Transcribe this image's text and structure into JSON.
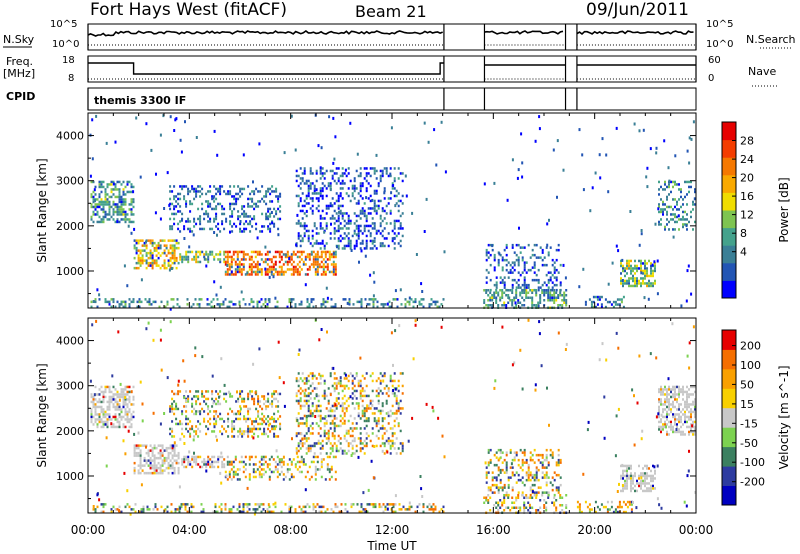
{
  "header": {
    "station": "Fort Hays West (fitACF)",
    "beam": "Beam 21",
    "date": "09/Jun/2011"
  },
  "top_panels": {
    "nsky_label": "N.Sky",
    "nsky_ticks": [
      "10^5",
      "10^0"
    ],
    "nsearch_label": "N.Search",
    "nsearch_ticks": [
      "10^5",
      "10^0"
    ],
    "freq_label_1": "Freq.",
    "freq_label_2": "[MHz]",
    "freq_ticks": [
      "18",
      "8"
    ],
    "nave_label": "Nave",
    "nave_ticks": [
      "60",
      "0"
    ],
    "cpid_label": "CPID",
    "cpid_value": "themis 3300 IF"
  },
  "chart_data": [
    {
      "type": "heatmap",
      "name": "power",
      "ylabel": "Slant Range [km]",
      "xlabel": "",
      "xlim_hours": [
        0,
        24
      ],
      "ylim": [
        180,
        4500
      ],
      "yticks": [
        1000,
        2000,
        3000,
        4000
      ],
      "colorbar": {
        "label": "Power [dB]",
        "ticks": [
          "28",
          "24",
          "20",
          "16",
          "12",
          "8",
          "4"
        ],
        "colors": [
          "#0000ff",
          "#2255b4",
          "#3a7f96",
          "#44a28c",
          "#7ec451",
          "#f0dd00",
          "#f9a900",
          "#f57800",
          "#f43d00",
          "#e60000"
        ]
      },
      "gaps_hours": [
        [
          14.1,
          15.6
        ],
        [
          18.9,
          19.25
        ]
      ],
      "regions": [
        {
          "t": [
            0.1,
            1.8
          ],
          "r": [
            2100,
            3000
          ],
          "level": 0.35
        },
        {
          "t": [
            1.8,
            3.6
          ],
          "r": [
            1050,
            1700
          ],
          "level": 0.6
        },
        {
          "t": [
            3.6,
            5.4
          ],
          "r": [
            1200,
            1450
          ],
          "level": 0.45
        },
        {
          "t": [
            5.4,
            9.8
          ],
          "r": [
            950,
            1450
          ],
          "level": 0.75
        },
        {
          "t": [
            3.2,
            7.6
          ],
          "r": [
            1900,
            2900
          ],
          "level": 0.2
        },
        {
          "t": [
            8.2,
            12.4
          ],
          "r": [
            1500,
            3300
          ],
          "level": 0.15
        },
        {
          "t": [
            0.1,
            14.0
          ],
          "r": [
            180,
            400
          ],
          "level": 0.3
        },
        {
          "t": [
            15.6,
            19.0
          ],
          "r": [
            180,
            600
          ],
          "level": 0.35
        },
        {
          "t": [
            15.7,
            18.7
          ],
          "r": [
            600,
            1600
          ],
          "level": 0.18
        },
        {
          "t": [
            21.0,
            22.4
          ],
          "r": [
            650,
            1250
          ],
          "level": 0.45
        },
        {
          "t": [
            22.5,
            24.0
          ],
          "r": [
            1900,
            3000
          ],
          "level": 0.3
        },
        {
          "t": [
            19.3,
            21.5
          ],
          "r": [
            180,
            450
          ],
          "level": 0.25
        }
      ]
    },
    {
      "type": "heatmap",
      "name": "velocity",
      "ylabel": "Slant Range [km]",
      "xlabel": "Time UT",
      "xlim_hours": [
        0,
        24
      ],
      "ylim": [
        180,
        4500
      ],
      "yticks": [
        1000,
        2000,
        3000,
        4000
      ],
      "xticks": [
        "00:00",
        "04:00",
        "08:00",
        "12:00",
        "16:00",
        "20:00",
        "00:00"
      ],
      "colorbar": {
        "label": "Velocity [m s^-1]",
        "ticks": [
          "200",
          "100",
          "50",
          "15",
          "-15",
          "-50",
          "-100",
          "-200"
        ],
        "colors": [
          "#0000c0",
          "#2d3ba0",
          "#3b8060",
          "#7cd250",
          "#c8c8c8",
          "#f8d000",
          "#f9a000",
          "#f56e00",
          "#e60000"
        ]
      },
      "gaps_hours": [
        [
          14.1,
          15.6
        ],
        [
          18.9,
          19.25
        ]
      ],
      "regions": [
        {
          "t": [
            0.1,
            1.8
          ],
          "r": [
            2100,
            3000
          ],
          "kind": "grey"
        },
        {
          "t": [
            1.8,
            3.6
          ],
          "r": [
            1050,
            1700
          ],
          "kind": "grey"
        },
        {
          "t": [
            3.6,
            5.4
          ],
          "r": [
            1200,
            1450
          ],
          "kind": "grey"
        },
        {
          "t": [
            5.4,
            9.8
          ],
          "r": [
            950,
            1450
          ],
          "kind": "mix"
        },
        {
          "t": [
            3.2,
            7.6
          ],
          "r": [
            1900,
            2900
          ],
          "kind": "mix"
        },
        {
          "t": [
            8.2,
            12.4
          ],
          "r": [
            1500,
            3300
          ],
          "kind": "mix"
        },
        {
          "t": [
            0.1,
            14.0
          ],
          "r": [
            180,
            400
          ],
          "kind": "mix"
        },
        {
          "t": [
            15.6,
            19.0
          ],
          "r": [
            180,
            600
          ],
          "kind": "mix"
        },
        {
          "t": [
            15.7,
            18.7
          ],
          "r": [
            600,
            1600
          ],
          "kind": "mix"
        },
        {
          "t": [
            21.0,
            22.4
          ],
          "r": [
            650,
            1250
          ],
          "kind": "grey"
        },
        {
          "t": [
            22.5,
            24.0
          ],
          "r": [
            1900,
            3000
          ],
          "kind": "grey"
        },
        {
          "t": [
            19.3,
            21.5
          ],
          "r": [
            180,
            450
          ],
          "kind": "mix"
        }
      ]
    }
  ]
}
